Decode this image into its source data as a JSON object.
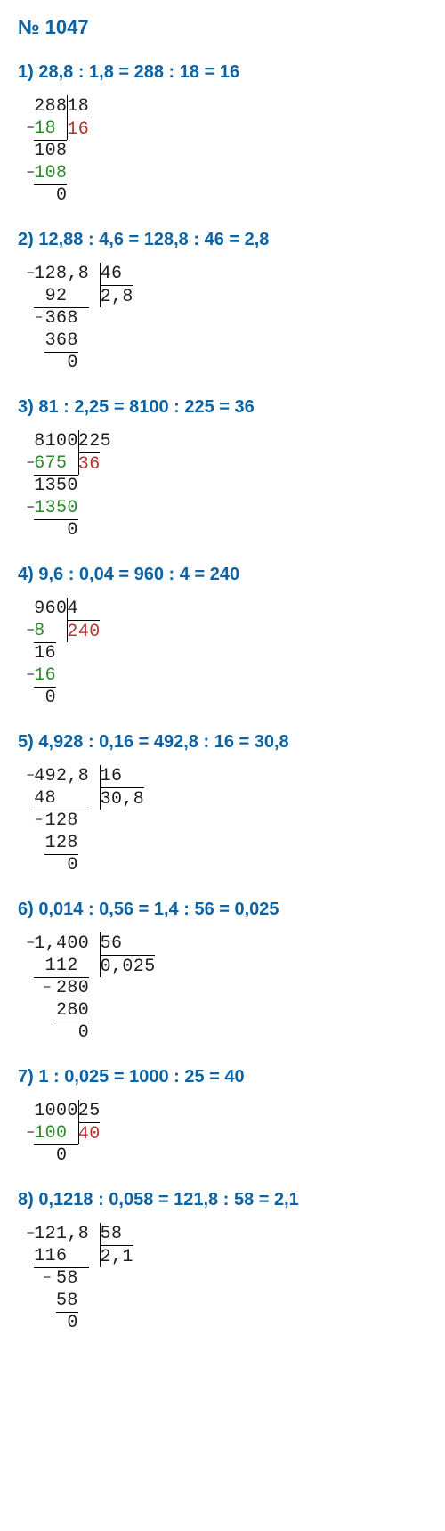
{
  "title_label": "№ 1047",
  "title_color": "#0b63a5",
  "eq_color": "#0b63a5",
  "char_width_em": 0.62,
  "colors": {
    "black": "#1f1e1e",
    "green": "#2c8a2c",
    "red": "#b8312f",
    "minus": "#1f1e1e"
  },
  "problems": [
    {
      "eq": "1) 28,8 : 1,8 = 288 : 18 = 16",
      "cols": 8,
      "vbar": {
        "col": 3,
        "rows": 2
      },
      "rows": [
        {
          "cells": [
            [
              "2",
              "b",
              0
            ],
            [
              "8",
              "b",
              1
            ],
            [
              "8",
              "b",
              2
            ],
            [
              "1",
              "b",
              3
            ],
            [
              "8",
              "b",
              4
            ]
          ]
        },
        {
          "minus": 0,
          "cells": [
            [
              "1",
              "g",
              0
            ],
            [
              "8",
              "g",
              1
            ],
            [
              "1",
              "r",
              3,
              true
            ],
            [
              "6",
              "r",
              4,
              true
            ]
          ]
        },
        {
          "hbar": [
            0,
            3
          ],
          "cells": [
            [
              "1",
              "b",
              0
            ],
            [
              "0",
              "b",
              1
            ],
            [
              "8",
              "b",
              2
            ]
          ]
        },
        {
          "minus": 0,
          "cells": [
            [
              "1",
              "g",
              0
            ],
            [
              "0",
              "g",
              1
            ],
            [
              "8",
              "g",
              2
            ]
          ]
        },
        {
          "hbar": [
            0,
            3
          ],
          "cells": [
            [
              "0",
              "b",
              2
            ]
          ]
        }
      ]
    },
    {
      "eq": "2) 12,88 : 4,6 = 128,8 : 46 = 2,8",
      "cols": 10,
      "vbar": {
        "col": 6,
        "rows": 2
      },
      "rows": [
        {
          "minus": 0,
          "cells": [
            [
              "1",
              "b",
              0
            ],
            [
              "2",
              "b",
              1
            ],
            [
              "8",
              "b",
              2
            ],
            [
              ",",
              "b",
              3
            ],
            [
              "8",
              "b",
              4
            ],
            [
              "4",
              "b",
              6
            ],
            [
              "6",
              "b",
              7
            ]
          ]
        },
        {
          "cells": [
            [
              "9",
              "b",
              1
            ],
            [
              "2",
              "b",
              2
            ],
            [
              "2",
              "b",
              6,
              true
            ],
            [
              ",",
              "b",
              7,
              true
            ],
            [
              "8",
              "b",
              8,
              true
            ]
          ]
        },
        {
          "hbar": [
            0,
            5
          ],
          "minus": 1,
          "cells": [
            [
              "3",
              "b",
              1
            ],
            [
              "6",
              "b",
              2
            ],
            [
              "8",
              "b",
              3
            ]
          ]
        },
        {
          "cells": [
            [
              "3",
              "b",
              1
            ],
            [
              "6",
              "b",
              2
            ],
            [
              "8",
              "b",
              3
            ]
          ]
        },
        {
          "hbar": [
            1,
            4
          ],
          "cells": [
            [
              "0",
              "b",
              3
            ]
          ]
        }
      ]
    },
    {
      "eq": "3) 81 : 2,25 = 8100 : 225 = 36",
      "cols": 9,
      "vbar": {
        "col": 4,
        "rows": 2
      },
      "rows": [
        {
          "cells": [
            [
              "8",
              "b",
              0
            ],
            [
              "1",
              "b",
              1
            ],
            [
              "0",
              "b",
              2
            ],
            [
              "0",
              "b",
              3
            ],
            [
              "2",
              "b",
              4
            ],
            [
              "2",
              "b",
              5
            ],
            [
              "5",
              "b",
              6
            ]
          ]
        },
        {
          "minus": 0,
          "cells": [
            [
              "6",
              "g",
              0
            ],
            [
              "7",
              "g",
              1
            ],
            [
              "5",
              "g",
              2
            ],
            [
              "3",
              "r",
              4,
              true
            ],
            [
              "6",
              "r",
              5,
              true
            ]
          ]
        },
        {
          "hbar": [
            0,
            4
          ],
          "cells": [
            [
              "1",
              "b",
              0
            ],
            [
              "3",
              "b",
              1
            ],
            [
              "5",
              "b",
              2
            ],
            [
              "0",
              "b",
              3
            ]
          ]
        },
        {
          "minus": 0,
          "cells": [
            [
              "1",
              "g",
              0
            ],
            [
              "3",
              "g",
              1
            ],
            [
              "5",
              "g",
              2
            ],
            [
              "0",
              "g",
              3
            ]
          ]
        },
        {
          "hbar": [
            0,
            4
          ],
          "cells": [
            [
              "0",
              "b",
              3
            ]
          ]
        }
      ]
    },
    {
      "eq": "4) 9,6 : 0,04 = 960 : 4 = 240",
      "cols": 8,
      "vbar": {
        "col": 3,
        "rows": 2
      },
      "rows": [
        {
          "cells": [
            [
              "9",
              "b",
              0
            ],
            [
              "6",
              "b",
              1
            ],
            [
              "0",
              "b",
              2
            ],
            [
              "4",
              "b",
              3
            ]
          ]
        },
        {
          "minus": 0,
          "cells": [
            [
              "8",
              "g",
              0
            ],
            [
              "2",
              "r",
              3,
              true
            ],
            [
              "4",
              "r",
              4,
              true
            ],
            [
              "0",
              "r",
              5,
              true
            ]
          ]
        },
        {
          "hbar": [
            0,
            2
          ],
          "cells": [
            [
              "1",
              "b",
              0
            ],
            [
              "6",
              "b",
              1
            ]
          ]
        },
        {
          "minus": 0,
          "cells": [
            [
              "1",
              "g",
              0
            ],
            [
              "6",
              "g",
              1
            ]
          ]
        },
        {
          "hbar": [
            0,
            2
          ],
          "cells": [
            [
              "0",
              "b",
              1
            ]
          ]
        }
      ]
    },
    {
      "eq": "5) 4,928 : 0,16 = 492,8 : 16 = 30,8",
      "cols": 11,
      "vbar": {
        "col": 6,
        "rows": 2
      },
      "rows": [
        {
          "minus": 0,
          "cells": [
            [
              "4",
              "b",
              0
            ],
            [
              "9",
              "b",
              1
            ],
            [
              "2",
              "b",
              2
            ],
            [
              ",",
              "b",
              3
            ],
            [
              "8",
              "b",
              4
            ],
            [
              "1",
              "b",
              6
            ],
            [
              "6",
              "b",
              7
            ]
          ]
        },
        {
          "cells": [
            [
              "4",
              "b",
              0
            ],
            [
              "8",
              "b",
              1
            ],
            [
              "3",
              "b",
              6,
              true
            ],
            [
              "0",
              "b",
              7,
              true
            ],
            [
              ",",
              "b",
              8,
              true
            ],
            [
              "8",
              "b",
              9,
              true
            ]
          ]
        },
        {
          "hbar": [
            0,
            5
          ],
          "minus": 1,
          "cells": [
            [
              "1",
              "b",
              1
            ],
            [
              "2",
              "b",
              2
            ],
            [
              "8",
              "b",
              3
            ]
          ]
        },
        {
          "cells": [
            [
              "1",
              "b",
              1
            ],
            [
              "2",
              "b",
              2
            ],
            [
              "8",
              "b",
              3
            ]
          ]
        },
        {
          "hbar": [
            1,
            4
          ],
          "cells": [
            [
              "0",
              "b",
              3
            ]
          ]
        }
      ]
    },
    {
      "eq": "6) 0,014 : 0,56 = 1,4 : 56 = 0,025",
      "cols": 12,
      "vbar": {
        "col": 6,
        "rows": 2
      },
      "rows": [
        {
          "minus": 0,
          "cells": [
            [
              "1",
              "b",
              0
            ],
            [
              ",",
              "b",
              1
            ],
            [
              "4",
              "b",
              2
            ],
            [
              "0",
              "b",
              3
            ],
            [
              "0",
              "b",
              4
            ],
            [
              "5",
              "b",
              6
            ],
            [
              "6",
              "b",
              7
            ]
          ]
        },
        {
          "cells": [
            [
              "1",
              "b",
              1
            ],
            [
              "1",
              "b",
              2
            ],
            [
              "2",
              "b",
              3
            ],
            [
              "0",
              "b",
              6,
              true
            ],
            [
              ",",
              "b",
              7,
              true
            ],
            [
              "0",
              "b",
              8,
              true
            ],
            [
              "2",
              "b",
              9,
              true
            ],
            [
              "5",
              "b",
              10,
              true
            ]
          ]
        },
        {
          "hbar": [
            0,
            5
          ],
          "minus": 2,
          "cells": [
            [
              "2",
              "b",
              2
            ],
            [
              "8",
              "b",
              3
            ],
            [
              "0",
              "b",
              4
            ]
          ]
        },
        {
          "cells": [
            [
              "2",
              "b",
              2
            ],
            [
              "8",
              "b",
              3
            ],
            [
              "0",
              "b",
              4
            ]
          ]
        },
        {
          "hbar": [
            2,
            5
          ],
          "cells": [
            [
              "0",
              "b",
              4
            ]
          ]
        }
      ]
    },
    {
      "eq": "7) 1 : 0,025 = 1000 : 25 = 40",
      "cols": 8,
      "vbar": {
        "col": 4,
        "rows": 2
      },
      "rows": [
        {
          "cells": [
            [
              "1",
              "b",
              0
            ],
            [
              "0",
              "b",
              1
            ],
            [
              "0",
              "b",
              2
            ],
            [
              "0",
              "b",
              3
            ],
            [
              "2",
              "b",
              4
            ],
            [
              "5",
              "b",
              5
            ]
          ]
        },
        {
          "minus": 0,
          "cells": [
            [
              "1",
              "g",
              0
            ],
            [
              "0",
              "g",
              1
            ],
            [
              "0",
              "g",
              2
            ],
            [
              "4",
              "r",
              4,
              true
            ],
            [
              "0",
              "r",
              5,
              true
            ]
          ]
        },
        {
          "hbar": [
            0,
            4
          ],
          "cells": [
            [
              "0",
              "b",
              2
            ]
          ]
        }
      ]
    },
    {
      "eq": "8) 0,1218 : 0,058 = 121,8 : 58 = 2,1",
      "cols": 11,
      "vbar": {
        "col": 6,
        "rows": 2
      },
      "rows": [
        {
          "minus": 0,
          "cells": [
            [
              "1",
              "b",
              0
            ],
            [
              "2",
              "b",
              1
            ],
            [
              "1",
              "b",
              2
            ],
            [
              ",",
              "b",
              3
            ],
            [
              "8",
              "b",
              4
            ],
            [
              "5",
              "b",
              6
            ],
            [
              "8",
              "b",
              7
            ]
          ]
        },
        {
          "cells": [
            [
              "1",
              "b",
              0
            ],
            [
              "1",
              "b",
              1
            ],
            [
              "6",
              "b",
              2
            ],
            [
              "2",
              "b",
              6,
              true
            ],
            [
              ",",
              "b",
              7,
              true
            ],
            [
              "1",
              "b",
              8,
              true
            ]
          ]
        },
        {
          "hbar": [
            0,
            5
          ],
          "minus": 2,
          "cells": [
            [
              "5",
              "b",
              2
            ],
            [
              "8",
              "b",
              3
            ]
          ]
        },
        {
          "cells": [
            [
              "5",
              "b",
              2
            ],
            [
              "8",
              "b",
              3
            ]
          ]
        },
        {
          "hbar": [
            2,
            4
          ],
          "cells": [
            [
              "0",
              "b",
              3
            ]
          ]
        }
      ]
    }
  ]
}
